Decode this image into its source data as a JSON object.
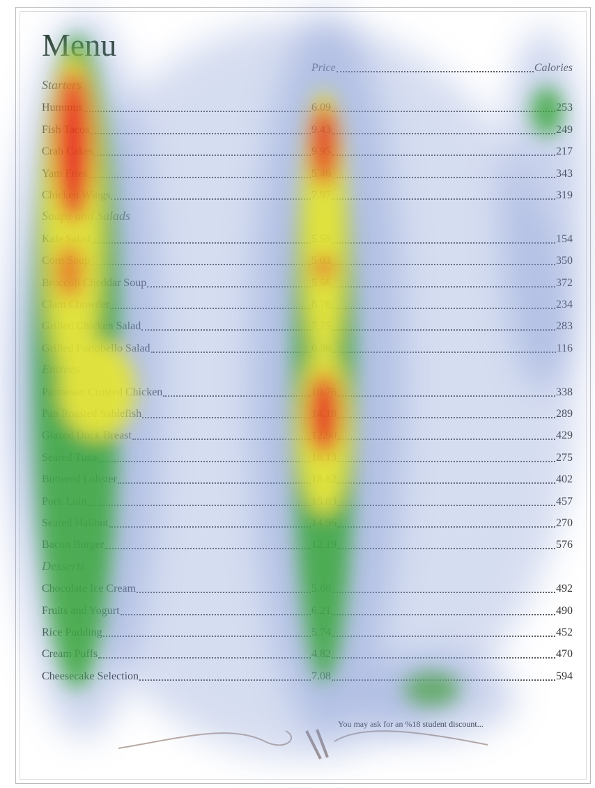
{
  "title": "Menu",
  "header": {
    "price": "Price",
    "calories": "Calories"
  },
  "sections": [
    {
      "title": "Starters",
      "items": [
        {
          "name": "Hummus",
          "price": "6.09",
          "calories": 253
        },
        {
          "name": "Fish Tacos",
          "price": "9.43",
          "calories": 249
        },
        {
          "name": "Crab Cakes",
          "price": "9.95",
          "calories": 217
        },
        {
          "name": "Yam Fries",
          "price": "5.46",
          "calories": 343
        },
        {
          "name": "Chicken Wings",
          "price": "7.97",
          "calories": 319
        }
      ]
    },
    {
      "title": "Soups and Salads",
      "items": [
        {
          "name": "Kale Salad",
          "price": "5.59",
          "calories": 154
        },
        {
          "name": "Corn Soup",
          "price": "5.03",
          "calories": 350
        },
        {
          "name": "Broccoli Cheddar Soup",
          "price": "5.56",
          "calories": 372
        },
        {
          "name": "Clam Chowder",
          "price": "8.76",
          "calories": 234
        },
        {
          "name": "Grilled Chicken Salad",
          "price": "7.75",
          "calories": 283
        },
        {
          "name": "Grilled Portobello Salad",
          "price": "6.36",
          "calories": 116
        }
      ]
    },
    {
      "title": "Entrees",
      "items": [
        {
          "name": "Parmesan Crusted Chicken",
          "price": "10.76",
          "calories": 338
        },
        {
          "name": "Pan Roasted Sablefish",
          "price": "14.18",
          "calories": 289
        },
        {
          "name": "Glazed Duck Breast",
          "price": "12.90",
          "calories": 429
        },
        {
          "name": "Seared Tuna",
          "price": "10.13",
          "calories": 275
        },
        {
          "name": "Buttered Lobster",
          "price": "18.82",
          "calories": 402
        },
        {
          "name": "Pork Loin",
          "price": "15.03",
          "calories": 457
        },
        {
          "name": "Seared Halibut",
          "price": "14.96",
          "calories": 270
        },
        {
          "name": "Bacon Burger",
          "price": "12.19",
          "calories": 576
        }
      ]
    },
    {
      "title": "Desserts",
      "items": [
        {
          "name": "Chocolate Ice Cream",
          "price": "5.66",
          "calories": 492
        },
        {
          "name": "Fruits and Yogurt",
          "price": "6.21",
          "calories": 490
        },
        {
          "name": "Rice Pudding",
          "price": "5.74",
          "calories": 452
        },
        {
          "name": "Cream Puffs",
          "price": "4.82",
          "calories": 470
        },
        {
          "name": "Cheesecake Selection",
          "price": "7.08",
          "calories": 594
        }
      ]
    }
  ],
  "footnote": "You may ask for an %18 student discount..."
}
